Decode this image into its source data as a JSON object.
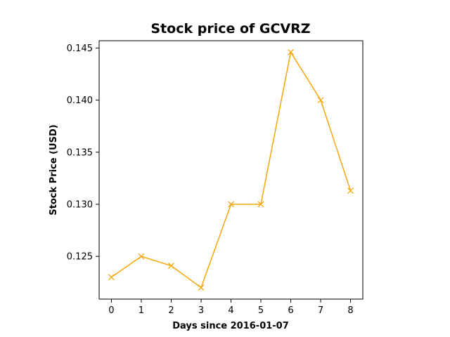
{
  "chart_data": {
    "type": "line",
    "title": "Stock price of GCVRZ",
    "xlabel": "Days since 2016-01-07",
    "ylabel": "Stock Price (USD)",
    "x": [
      0,
      1,
      2,
      3,
      4,
      5,
      6,
      7,
      8
    ],
    "series": [
      {
        "values": [
          0.123,
          0.125,
          0.1241,
          0.122,
          0.13,
          0.13,
          0.1446,
          0.14,
          0.1313
        ]
      }
    ],
    "xlim": [
      -0.41,
      8.41
    ],
    "ylim": [
      0.1209,
      0.1457
    ],
    "x_ticks": [
      "0",
      "1",
      "2",
      "3",
      "4",
      "5",
      "6",
      "7",
      "8"
    ],
    "y_ticks": [
      "0.125",
      "0.130",
      "0.135",
      "0.140",
      "0.145"
    ],
    "marker": "x",
    "grid": false,
    "colors": {
      "line": "#f5a70a",
      "axes": "#000000"
    }
  }
}
